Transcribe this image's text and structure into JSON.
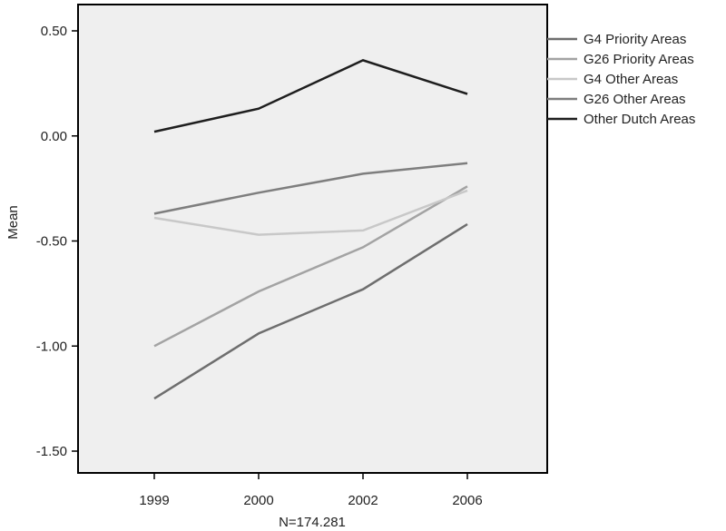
{
  "chart_data": {
    "type": "line",
    "x": [
      "1999",
      "2000",
      "2002",
      "2006"
    ],
    "xlabel": "N=174.281",
    "ylabel": "Mean",
    "ylim": [
      -1.65,
      0.5
    ],
    "yticks": [
      "0.50",
      "0.00",
      "-0.50",
      "-1.00",
      "-1.50"
    ],
    "ytick_values": [
      0.5,
      0.0,
      -0.5,
      -1.0,
      -1.5
    ],
    "grid": false,
    "legend_position": "right",
    "plot_background": "#efefef",
    "series": [
      {
        "name": "G4 Priority Areas",
        "color": "#6e6e6e",
        "values": [
          -1.25,
          -0.94,
          -0.73,
          -0.42
        ]
      },
      {
        "name": "G26 Priority Areas",
        "color": "#a3a3a3",
        "values": [
          -1.0,
          -0.74,
          -0.53,
          -0.24
        ]
      },
      {
        "name": "G4 Other Areas",
        "color": "#c8c8c8",
        "values": [
          -0.39,
          -0.47,
          -0.45,
          -0.26
        ]
      },
      {
        "name": "G26 Other Areas",
        "color": "#7e7e7e",
        "values": [
          -0.37,
          -0.27,
          -0.18,
          -0.13
        ]
      },
      {
        "name": "Other Dutch Areas",
        "color": "#1e1e1e",
        "values": [
          0.02,
          0.13,
          0.36,
          0.2
        ]
      }
    ]
  }
}
